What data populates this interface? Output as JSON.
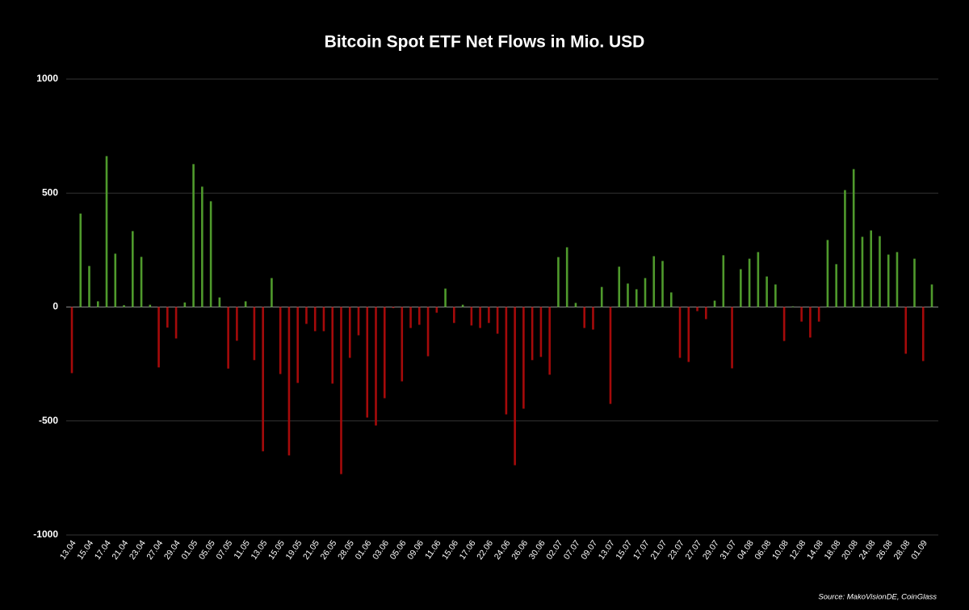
{
  "chart_data": {
    "type": "bar",
    "title": "Bitcoin Spot ETF Net Flows in Mio. USD",
    "source": "Source: MakoVisionDE, CoinGlass",
    "categories": [
      "13.04",
      null,
      "15.04",
      null,
      "17.04",
      null,
      "21.04",
      null,
      "23.04",
      null,
      "27.04",
      null,
      "29.04",
      null,
      "01.05",
      null,
      "05.05",
      null,
      "07.05",
      null,
      "11.05",
      null,
      "13.05",
      null,
      "15.05",
      null,
      "19.05",
      null,
      "21.05",
      null,
      "26.05",
      null,
      "28.05",
      null,
      "01.06",
      null,
      "03.06",
      null,
      "05.06",
      null,
      "09.06",
      null,
      "11.06",
      null,
      "15.06",
      null,
      "17.06",
      null,
      "22.06",
      null,
      "24.06",
      null,
      "26.06",
      null,
      "30.06",
      null,
      "02.07",
      null,
      "07.07",
      null,
      "09.07",
      null,
      "13.07",
      null,
      "15.07",
      null,
      "17.07",
      null,
      "21.07",
      null,
      "23.07",
      null,
      "27.07",
      null,
      "29.07",
      null,
      "31.07",
      null,
      "04.08",
      null,
      "06.08",
      null,
      "10.08",
      null,
      "12.08",
      null,
      "14.08",
      null,
      "18.08",
      null,
      "20.08",
      null,
      "24.08",
      null,
      "26.08",
      null,
      "28.08",
      null,
      "01.09",
      null
    ],
    "values": [
      -290,
      410,
      180,
      25,
      662,
      234,
      8,
      333,
      220,
      10,
      -265,
      -90,
      -138,
      20,
      627,
      528,
      464,
      42,
      -270,
      -148,
      25,
      -233,
      -633,
      127,
      -294,
      -651,
      -333,
      -74,
      -106,
      -106,
      -336,
      -733,
      -223,
      -124,
      -485,
      -520,
      -400,
      -5,
      -326,
      -92,
      -78,
      -216,
      -25,
      81,
      -70,
      10,
      -81,
      -92,
      -70,
      -117,
      -471,
      -694,
      -446,
      -233,
      -219,
      -297,
      219,
      262,
      18,
      -92,
      -99,
      88,
      -425,
      177,
      103,
      78,
      127,
      223,
      202,
      64,
      -223,
      -241,
      -18,
      -53,
      28,
      227,
      -269,
      166,
      212,
      241,
      134,
      99,
      -149,
      3,
      -64,
      -134,
      -64,
      294,
      188,
      513,
      605,
      308,
      336,
      311,
      230,
      241,
      -205,
      212,
      -237,
      99
    ],
    "positive_color": "#4f9a2c",
    "negative_color": "#a50a0a",
    "ylim": [
      -1000,
      1000
    ],
    "yticks": [
      -1000,
      -500,
      0,
      500,
      1000
    ],
    "grid": true
  }
}
